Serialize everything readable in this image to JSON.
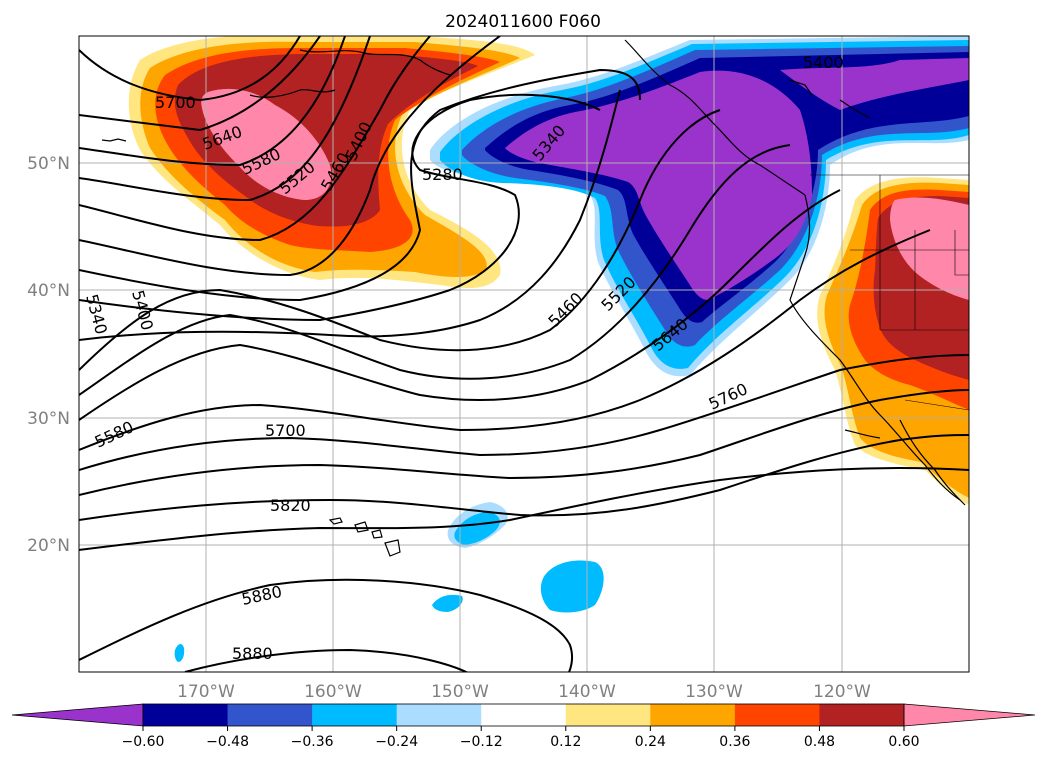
{
  "title": "2024011600 F060",
  "lat_labels": [
    "50°N",
    "40°N",
    "30°N",
    "20°N"
  ],
  "lon_labels": [
    "170°W",
    "160°W",
    "150°W",
    "140°W",
    "130°W",
    "120°W"
  ],
  "contour_labels": [
    "5700",
    "5640",
    "5580",
    "5520",
    "5460",
    "5400",
    "5280",
    "5340",
    "5400",
    "5460",
    "5520",
    "5640",
    "5760",
    "5340",
    "5400",
    "5580",
    "5700",
    "5820",
    "5880",
    "5880"
  ],
  "colorbar": {
    "ticks": [
      "−0.60",
      "−0.48",
      "−0.36",
      "−0.24",
      "−0.12",
      "0.12",
      "0.24",
      "0.36",
      "0.48",
      "0.60"
    ],
    "colors": [
      "#9933cc",
      "#000099",
      "#3355cc",
      "#00bbff",
      "#aaddff",
      "#ffffff",
      "#ffe680",
      "#ffa500",
      "#ff4400",
      "#b22222",
      "#ff88aa"
    ]
  }
}
